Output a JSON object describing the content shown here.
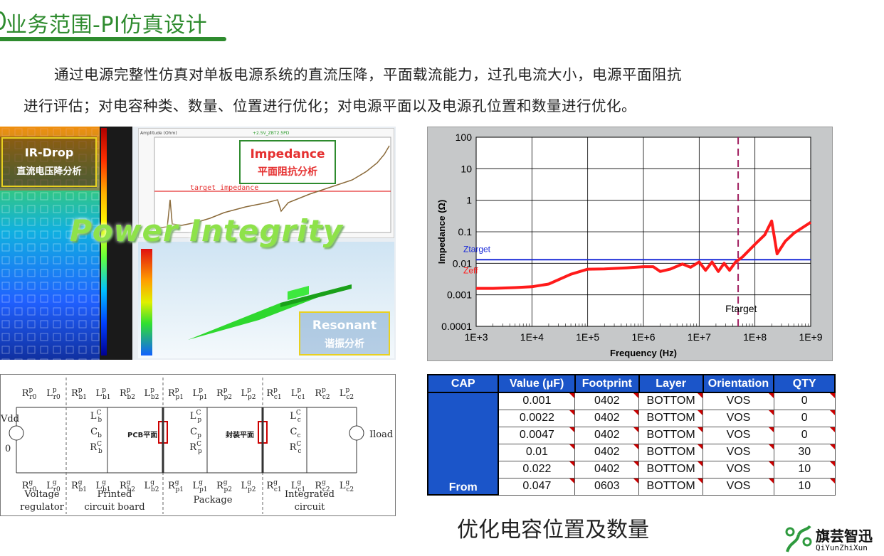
{
  "header": {
    "title": "业务范围-PI仿真设计"
  },
  "intro": {
    "line1": "通过电源完整性仿真对单板电源系统的直流压降，平面载流能力，过孔电流大小，电源平面阻抗",
    "line2": "进行评估；对电容种类、数量、位置进行优化；对电源平面以及电源孔位置和数量进行优化。"
  },
  "montage": {
    "irdrop_title": "IR-Drop",
    "irdrop_sub": "直流电压降分析",
    "plot_title": "+2.5V_ZBT2.5PD",
    "plot_ylabel": "Amplitude (Ohm)",
    "target_label": "target impedance",
    "impedance_title": "Impedance",
    "impedance_sub": "平面阻抗分析",
    "overlay": "Power Integrity",
    "resonant_title": "Resonant",
    "resonant_sub": "谐振分析",
    "colors": {
      "green": "#2e8b2e",
      "red": "#e53030",
      "lime": "#7dd63a"
    }
  },
  "circuit": {
    "labels": {
      "vdd": "Vdd",
      "zero": "0",
      "iload": "Iload",
      "pcb_plane": "PCB平面",
      "pkg_plane": "封装平面"
    },
    "sections": [
      {
        "line1": "Voltage",
        "line2": "regulator"
      },
      {
        "line1": "Printed",
        "line2": "circuit board"
      },
      {
        "line1": "Package",
        "line2": ""
      },
      {
        "line1": "Integrated",
        "line2": "circuit"
      }
    ],
    "top_labels": [
      "R^p_r0",
      "L^p_r0",
      "R^p_b1",
      "L^p_b1",
      "R^p_b2",
      "L^p_b2",
      "R^p_p1",
      "L^p_p1",
      "R^p_p2",
      "L^p_p2",
      "R^p_c1",
      "L^p_c1",
      "R^p_c2",
      "L^p_c2"
    ],
    "bottom_labels": [
      "R^g_r0",
      "L^g_r0",
      "R^g_b1",
      "L^g_b1",
      "R^g_b2",
      "L^g_b2",
      "R^g_p1",
      "L^g_p1",
      "R^g_p2",
      "L^g_p2",
      "R^g_c1",
      "L^g_c1",
      "R^g_c2",
      "L^g_c2"
    ],
    "shunt_labels": {
      "board": [
        "L^C_b",
        "C_b",
        "R^C_b"
      ],
      "package": [
        "L^C_p",
        "C_p",
        "R^C_p"
      ],
      "chip": [
        "L^C_c",
        "C_c",
        "R^C_c"
      ]
    }
  },
  "chart_data": {
    "type": "line",
    "xlabel": "Frequency (Hz)",
    "ylabel": "Impedance (Ω)",
    "xscale": "log",
    "yscale": "log",
    "xlim": [
      1000,
      1000000000
    ],
    "ylim": [
      0.0001,
      100
    ],
    "xticks": [
      "1E+3",
      "1E+4",
      "1E+5",
      "1E+6",
      "1E+7",
      "1E+8",
      "1E+9"
    ],
    "yticks": [
      "0.0001",
      "0.001",
      "0.01",
      "0.1",
      "1",
      "10",
      "100"
    ],
    "grid": true,
    "annotations": [
      "Ztarget",
      "Zeff",
      "Ftarget"
    ],
    "ztarget": 0.013,
    "ftarget": 50000000,
    "series": [
      {
        "name": "Zeff",
        "color": "#ff1a1a",
        "points": [
          [
            1000,
            0.0016
          ],
          [
            2000,
            0.0016
          ],
          [
            5000,
            0.0017
          ],
          [
            10000,
            0.0018
          ],
          [
            20000,
            0.0022
          ],
          [
            50000,
            0.0045
          ],
          [
            100000,
            0.0065
          ],
          [
            200000,
            0.0066
          ],
          [
            500000,
            0.0072
          ],
          [
            1000000,
            0.0078
          ],
          [
            1500000,
            0.0078
          ],
          [
            2000000,
            0.0055
          ],
          [
            3000000,
            0.0065
          ],
          [
            5000000,
            0.0095
          ],
          [
            7000000,
            0.0075
          ],
          [
            10000000,
            0.011
          ],
          [
            13000000,
            0.006
          ],
          [
            17000000,
            0.011
          ],
          [
            22000000,
            0.0055
          ],
          [
            28000000,
            0.01
          ],
          [
            35000000,
            0.006
          ],
          [
            45000000,
            0.011
          ],
          [
            60000000,
            0.016
          ],
          [
            100000000,
            0.04
          ],
          [
            150000000,
            0.08
          ],
          [
            200000000,
            0.22
          ],
          [
            250000000,
            0.02
          ],
          [
            350000000,
            0.05
          ],
          [
            500000000,
            0.09
          ],
          [
            1000000000,
            0.2
          ]
        ]
      }
    ]
  },
  "cap_table": {
    "headers": [
      "CAP",
      "Value (μF)",
      "Footprint",
      "Layer",
      "Orientation",
      "QTY"
    ],
    "cap_cell": "From",
    "rows": [
      [
        "0.001",
        "0402",
        "BOTTOM",
        "VOS",
        "0"
      ],
      [
        "0.0022",
        "0402",
        "BOTTOM",
        "VOS",
        "0"
      ],
      [
        "0.0047",
        "0402",
        "BOTTOM",
        "VOS",
        "0"
      ],
      [
        "0.01",
        "0402",
        "BOTTOM",
        "VOS",
        "30"
      ],
      [
        "0.022",
        "0402",
        "BOTTOM",
        "VOS",
        "10"
      ],
      [
        "0.047",
        "0603",
        "BOTTOM",
        "VOS",
        "10"
      ]
    ]
  },
  "caption": "优化电容位置及数量",
  "logo": {
    "name": "旗芸智迅",
    "sub": "QiYunZhiXun"
  }
}
